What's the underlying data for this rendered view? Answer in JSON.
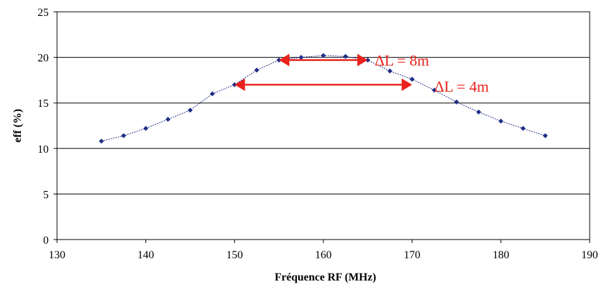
{
  "chart_data": {
    "type": "line",
    "title": "",
    "xlabel": "Fréquence RF (MHz)",
    "ylabel": "eff (%)",
    "xlim": [
      130,
      190
    ],
    "ylim": [
      0,
      25
    ],
    "xticks": [
      130,
      140,
      150,
      160,
      170,
      180,
      190
    ],
    "yticks": [
      0,
      5,
      10,
      15,
      20,
      25
    ],
    "grid": "horizontal",
    "series": [
      {
        "color": "#1f2d86",
        "points": [
          {
            "x": 135,
            "y": 10.8
          },
          {
            "x": 137.5,
            "y": 11.4
          },
          {
            "x": 140,
            "y": 12.2
          },
          {
            "x": 142.5,
            "y": 13.2
          },
          {
            "x": 145,
            "y": 14.2
          },
          {
            "x": 147.5,
            "y": 16.0
          },
          {
            "x": 150,
            "y": 17.0
          },
          {
            "x": 152.5,
            "y": 18.6
          },
          {
            "x": 155,
            "y": 19.7
          },
          {
            "x": 157.5,
            "y": 20.0
          },
          {
            "x": 160,
            "y": 20.2
          },
          {
            "x": 162.5,
            "y": 20.1
          },
          {
            "x": 165,
            "y": 19.7
          },
          {
            "x": 167.5,
            "y": 18.5
          },
          {
            "x": 170,
            "y": 17.6
          },
          {
            "x": 172.5,
            "y": 16.4
          },
          {
            "x": 175,
            "y": 15.1
          },
          {
            "x": 177.5,
            "y": 14.0
          },
          {
            "x": 180,
            "y": 13.0
          },
          {
            "x": 182.5,
            "y": 12.2
          },
          {
            "x": 185,
            "y": 11.4
          }
        ]
      }
    ],
    "annotations": [
      {
        "text": "ΔL = 8m",
        "x_start": 155,
        "x_end": 165,
        "y": 19.7,
        "color": "#e8221b"
      },
      {
        "text": "ΔL = 4m",
        "x_start": 150,
        "x_end": 170,
        "y": 17.0,
        "color": "#e8221b"
      }
    ]
  }
}
